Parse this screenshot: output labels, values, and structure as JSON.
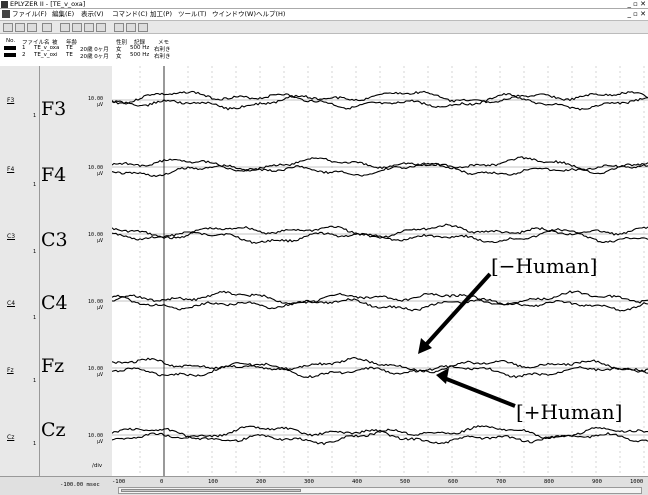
{
  "window": {
    "title": "EPLYZER II - [TE_v_oxa]"
  },
  "menu": [
    "ファイル(F)",
    "編集(E)",
    "表示(V)",
    "コマンド(C)",
    "加工(P)",
    "ツール(T)",
    "ウインドウ(W)",
    "ヘルプ(H)"
  ],
  "info": {
    "headers": [
      "No.",
      "ファイル名",
      "被",
      "年齢",
      "性別",
      "記録",
      "メモ"
    ],
    "rows": [
      [
        "1",
        "TE_v_oxa",
        "TE",
        "20歳 0ヶ月",
        "女",
        "500 Hz",
        "右利き"
      ],
      [
        "2",
        "TE_v_oxi",
        "TE",
        "20歳 0ヶ月",
        "女",
        "500 Hz",
        "右利き"
      ]
    ]
  },
  "channels": [
    {
      "short": "F3",
      "name": "F3",
      "index": "1",
      "scale": "10.00",
      "unit": "µV"
    },
    {
      "short": "F4",
      "name": "F4",
      "index": "1",
      "scale": "10.00",
      "unit": "µV"
    },
    {
      "short": "C3",
      "name": "C3",
      "index": "1",
      "scale": "10.00",
      "unit": "µV"
    },
    {
      "short": "C4",
      "name": "C4",
      "index": "1",
      "scale": "10.00",
      "unit": "µV"
    },
    {
      "short": "Fz",
      "name": "Fz",
      "index": "1",
      "scale": "10.00",
      "unit": "µV"
    },
    {
      "short": "Cz",
      "name": "Cz",
      "index": "1",
      "scale": "10.00",
      "unit": "µV"
    }
  ],
  "div_label": "/div",
  "time_scale": "100.00 msec",
  "x_ticks": [
    "-100",
    "0",
    "100",
    "200",
    "300",
    "400",
    "500",
    "600",
    "700",
    "800",
    "900",
    "1000"
  ],
  "annotations": {
    "minus": "[−Human]",
    "plus": "[+Human]"
  },
  "colors": {
    "trace": "#000000",
    "grid": "#bbbbbb",
    "panel": "#e8e8e8"
  },
  "icons": [
    "open-icon",
    "save-icon",
    "print-icon",
    "copy-icon",
    "zoom-icon",
    "grid-icon",
    "wave-icon",
    "cursor-icon",
    "marker-icon",
    "list-icon"
  ]
}
